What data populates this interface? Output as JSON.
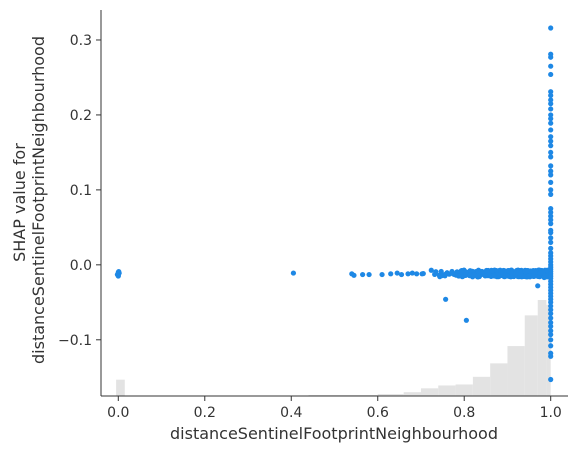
{
  "chart_data": {
    "type": "scatter",
    "xlabel": "distanceSentinelFootprintNeighbourhood",
    "ylabel_lines": [
      "SHAP value for",
      "distanceSentinelFootprintNeighbourhood"
    ],
    "xlim": [
      -0.04,
      1.04
    ],
    "ylim": [
      -0.175,
      0.34
    ],
    "x_ticks": [
      0.0,
      0.2,
      0.4,
      0.6,
      0.8,
      1.0
    ],
    "x_tick_labels": [
      "0.0",
      "0.2",
      "0.4",
      "0.6",
      "0.8",
      "1.0"
    ],
    "y_ticks": [
      0.3,
      0.2,
      0.1,
      0.0,
      -0.1
    ],
    "y_tick_labels": [
      "0.3",
      "0.2",
      "0.1",
      "0.0",
      "−0.1"
    ],
    "point_color": "#1e88e5",
    "histogram_color": "#e3e3e3",
    "histogram_note": "feature value distribution, heights in relative frequency (0-1)",
    "histogram": [
      {
        "x0": -0.005,
        "x1": 0.015,
        "h": 0.17
      },
      {
        "x0": 0.44,
        "x1": 0.6,
        "h": 0.01
      },
      {
        "x0": 0.6,
        "x1": 0.66,
        "h": 0.02
      },
      {
        "x0": 0.66,
        "x1": 0.7,
        "h": 0.04
      },
      {
        "x0": 0.7,
        "x1": 0.74,
        "h": 0.08
      },
      {
        "x0": 0.74,
        "x1": 0.78,
        "h": 0.11
      },
      {
        "x0": 0.78,
        "x1": 0.82,
        "h": 0.12
      },
      {
        "x0": 0.82,
        "x1": 0.86,
        "h": 0.2
      },
      {
        "x0": 0.86,
        "x1": 0.9,
        "h": 0.34
      },
      {
        "x0": 0.9,
        "x1": 0.94,
        "h": 0.52
      },
      {
        "x0": 0.94,
        "x1": 0.97,
        "h": 0.84
      },
      {
        "x0": 0.97,
        "x1": 0.99,
        "h": 1.0
      },
      {
        "x0": 0.99,
        "x1": 1.0,
        "h": 0.95
      }
    ],
    "points": {
      "zero_cluster": [
        [
          0.0,
          -0.012
        ],
        [
          0.0,
          -0.01
        ],
        [
          0.0,
          -0.014
        ],
        [
          0.002,
          -0.011
        ],
        [
          -0.002,
          -0.013
        ],
        [
          0.0,
          -0.015
        ],
        [
          0.001,
          -0.009
        ]
      ],
      "sparse_mid": [
        [
          0.405,
          -0.011
        ],
        [
          0.54,
          -0.012
        ],
        [
          0.545,
          -0.014
        ],
        [
          0.565,
          -0.013
        ],
        [
          0.58,
          -0.013
        ],
        [
          0.61,
          -0.013
        ],
        [
          0.63,
          -0.012
        ],
        [
          0.645,
          -0.011
        ],
        [
          0.655,
          -0.013
        ],
        [
          0.67,
          -0.012
        ],
        [
          0.68,
          -0.011
        ],
        [
          0.69,
          -0.012
        ]
      ],
      "outliers": [
        [
          0.757,
          -0.046
        ],
        [
          0.805,
          -0.074
        ],
        [
          0.97,
          -0.028
        ],
        [
          0.985,
          -0.017
        ]
      ],
      "band_x_range": [
        0.7,
        0.995
      ],
      "band_y_range": [
        -0.016,
        -0.007
      ],
      "band_count": 340,
      "vertical_x": 1.0,
      "vertical_y_values": [
        0.316,
        0.281,
        0.277,
        0.265,
        0.254,
        0.231,
        0.226,
        0.22,
        0.215,
        0.208,
        0.2,
        0.195,
        0.189,
        0.18,
        0.171,
        0.165,
        0.159,
        0.15,
        0.144,
        0.132,
        0.125,
        0.12,
        0.11,
        0.1,
        0.094,
        0.075,
        0.07,
        0.065,
        0.06,
        0.055,
        0.046,
        0.043,
        0.036,
        0.03,
        0.022,
        0.016,
        0.012,
        0.008,
        0.004,
        0.0,
        -0.003,
        -0.006,
        -0.009,
        -0.012,
        -0.015,
        -0.018,
        -0.022,
        -0.026,
        -0.03,
        -0.034,
        -0.038,
        -0.042,
        -0.046,
        -0.05,
        -0.055,
        -0.06,
        -0.065,
        -0.071,
        -0.077,
        -0.082,
        -0.088,
        -0.093,
        -0.1,
        -0.108,
        -0.118,
        -0.122,
        -0.153
      ]
    }
  }
}
